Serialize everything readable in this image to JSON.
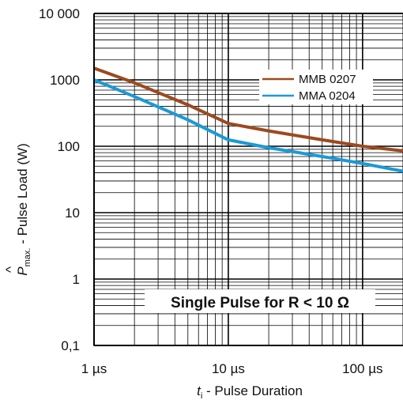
{
  "chart_data": {
    "type": "line",
    "title": "",
    "x_scale": "log",
    "y_scale": "log",
    "xlim": [
      "1 µs",
      "200 µs"
    ],
    "ylim": [
      0.1,
      10000
    ],
    "grid": true,
    "x_ticks": [
      "1 µs",
      "10 µs",
      "100 µs"
    ],
    "y_ticks": [
      "10 000",
      "1000",
      "100",
      "10",
      "1",
      "0,1"
    ],
    "xlabel": {
      "symbol": "t",
      "subscript": "i",
      "text": " - Pulse Duration"
    },
    "ylabel": {
      "hat": "^",
      "symbol": "P",
      "subscript": "max.",
      "text": " - Pulse Load  (W)"
    },
    "legend_position": "top-right",
    "annotation": "Single Pulse for R < 10 Ω",
    "x_unit": "µs",
    "series": [
      {
        "name": "MMB 0207",
        "color": "#9b4a1f",
        "x": [
          1,
          2,
          5,
          10,
          20,
          50,
          100,
          200
        ],
        "y": [
          1500,
          900,
          420,
          220,
          170,
          125,
          100,
          85
        ]
      },
      {
        "name": "MMA 0204",
        "color": "#1a9ad6",
        "x": [
          1,
          2,
          5,
          10,
          20,
          50,
          100,
          200
        ],
        "y": [
          1000,
          560,
          250,
          125,
          95,
          70,
          55,
          42
        ]
      }
    ]
  }
}
